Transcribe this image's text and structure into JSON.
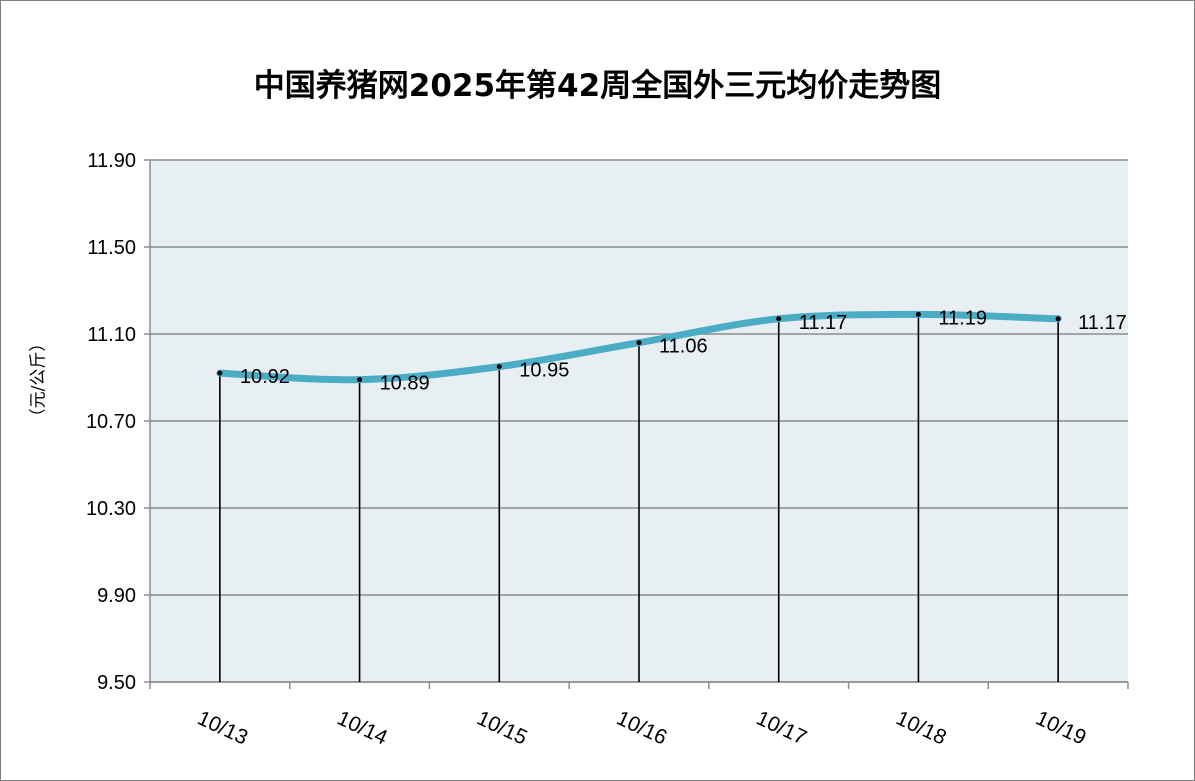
{
  "chart_data": {
    "type": "line",
    "title": "中国养猪网2025年第42周全国外三元均价走势图",
    "ylabel": "（元/公斤）",
    "xlabel": "",
    "categories": [
      "10/13",
      "10/14",
      "10/15",
      "10/16",
      "10/17",
      "10/18",
      "10/19"
    ],
    "series": [
      {
        "values": [
          10.92,
          10.89,
          10.95,
          11.06,
          11.17,
          11.19,
          11.17
        ]
      }
    ],
    "data_labels": [
      "10.92",
      "10.89",
      "10.95",
      "11.06",
      "11.17",
      "11.19",
      "11.17"
    ],
    "y_ticks": [
      "9.50",
      "9.90",
      "10.30",
      "10.70",
      "11.10",
      "11.50",
      "11.90"
    ],
    "ylim": [
      9.5,
      11.9
    ],
    "grid": "horizontal",
    "drop_lines": true,
    "colors": {
      "line": "#4bacc6",
      "plot_bg": "#e8eff3",
      "grid": "#8c8c8c",
      "drop_line": "#000000"
    }
  }
}
